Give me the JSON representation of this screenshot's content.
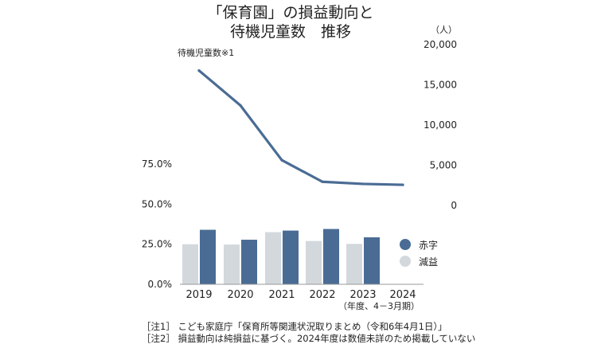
{
  "colors": {
    "deficit": "#4a6c94",
    "decline": "#d3d8dd",
    "line": "#4a6c94"
  },
  "title": {
    "line1": "「保育園」の損益動向と",
    "line2": "待機児童数　推移"
  },
  "chart_data": [
    {
      "type": "line",
      "series_label": "待機児童数※1",
      "ylabel": "（人）",
      "x": [
        "2019",
        "2020",
        "2021",
        "2022",
        "2023",
        "2024"
      ],
      "values": [
        16772,
        12439,
        5634,
        2944,
        2680,
        2567
      ],
      "ylim": [
        0,
        20000
      ],
      "yticks": [
        "20,000",
        "15,000",
        "10,000",
        "5,000",
        "0"
      ],
      "grid": false,
      "axis_position": "right"
    },
    {
      "type": "bar",
      "categories": [
        "2019",
        "2020",
        "2021",
        "2022",
        "2023",
        "2024"
      ],
      "x_sublabel": "（年度、4－3月期）",
      "ylim": [
        0,
        75
      ],
      "yticks": [
        "75.0%",
        "50.0%",
        "25.0%",
        "0.0%"
      ],
      "series": [
        {
          "name": "減益",
          "values": [
            25,
            24.8,
            32.5,
            27,
            25.2,
            null
          ]
        },
        {
          "name": "赤字",
          "values": [
            34,
            27.8,
            33.5,
            34.5,
            29.3,
            null
          ]
        }
      ],
      "legend_position": "right",
      "grid": false
    }
  ],
  "notes": [
    "［注1］ こども家庭庁「保育所等関連状況取りまとめ（令和6年4月1日）」",
    "［注2］ 損益動向は純損益に基づく。2024年度は数値未詳のため掲載していない"
  ]
}
